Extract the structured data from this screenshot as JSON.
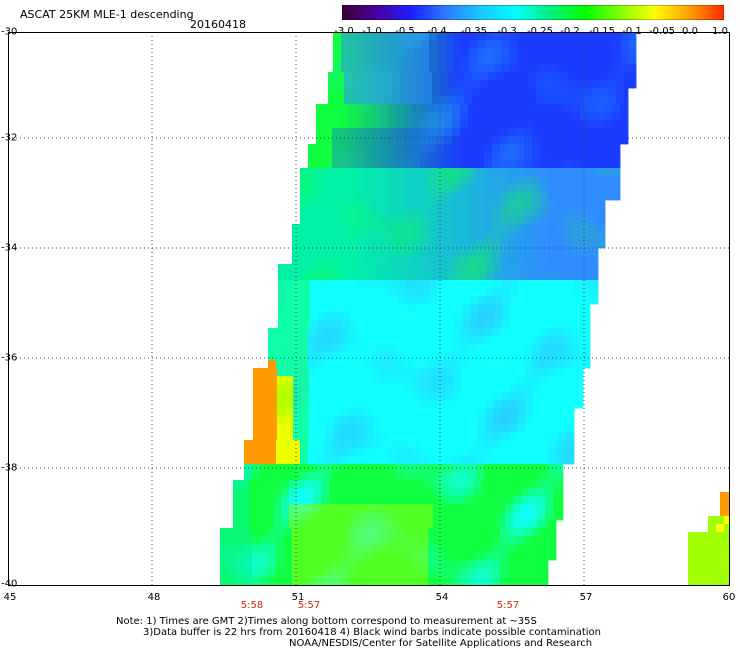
{
  "header": {
    "title": "ASCAT 25KM MLE-1 descending",
    "date": "20160418"
  },
  "colorbar": {
    "labels": [
      "-3.0",
      "-1.0",
      "-0.5",
      "-0.4",
      "-0.35",
      "-0.3",
      "-0.25",
      "-0.2",
      "-0.15",
      "-0.1",
      "-0.05",
      "0.0",
      "1.0"
    ],
    "colors": [
      "#3a0030",
      "#4a00a0",
      "#1a20ff",
      "#2d7bff",
      "#18c8ff",
      "#00ffff",
      "#00f080",
      "#00ff00",
      "#80ff00",
      "#ffff00",
      "#ffa000",
      "#ff2a00"
    ]
  },
  "map": {
    "lat_labels": [
      "-30",
      "-32",
      "-34",
      "-36",
      "-38",
      "-40"
    ],
    "lon_labels": [
      "45",
      "48",
      "51",
      "54",
      "57",
      "60"
    ],
    "time_labels": [
      "5:58",
      "5:57",
      "5:57"
    ]
  },
  "footer": {
    "line1": "Note: 1) Times are GMT 2)Times along bottom correspond to measurement at ~35S",
    "line2": "3)Data buffer is 22 hrs from 20160418 4) Black wind barbs indicate possible contamination",
    "line3": "NOAA/NESDIS/Center for Satellite Applications and Research"
  }
}
